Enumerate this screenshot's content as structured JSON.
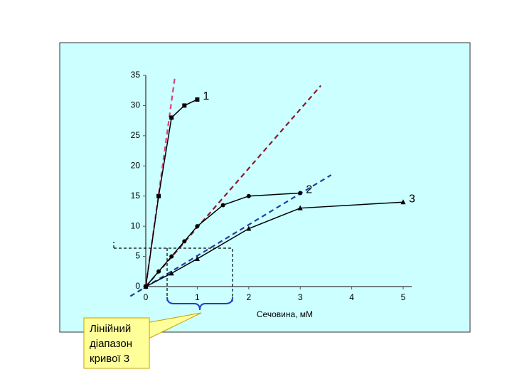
{
  "chart_data": {
    "type": "line",
    "xlabel": "Сечовина, мМ",
    "xlim": [
      0,
      5
    ],
    "xticks": [
      0,
      1,
      2,
      3,
      4,
      5
    ],
    "ylim": [
      0,
      35
    ],
    "yticks": [
      0,
      5,
      10,
      15,
      20,
      25,
      30,
      35
    ],
    "series": [
      {
        "name": "1",
        "color": "#000000",
        "marker": "square",
        "x": [
          0,
          0.25,
          0.5,
          0.75,
          1
        ],
        "values": [
          0,
          15,
          28,
          30,
          31
        ]
      },
      {
        "name": "2",
        "color": "#000000",
        "marker": "circle",
        "x": [
          0,
          0.25,
          0.5,
          0.75,
          1,
          1.5,
          2,
          3
        ],
        "values": [
          0,
          2.5,
          5,
          7.5,
          10,
          13.5,
          15,
          15.5
        ]
      },
      {
        "name": "3",
        "color": "#000000",
        "marker": "triangle",
        "x": [
          0,
          0.5,
          1,
          2,
          3,
          5
        ],
        "values": [
          0,
          2.2,
          4.6,
          9.6,
          13,
          14
        ]
      }
    ],
    "reference_lines": [
      {
        "color": "#e0407a",
        "x": [
          0,
          0.57
        ],
        "y": [
          0,
          35
        ]
      },
      {
        "color": "#8b1a2a",
        "x": [
          0,
          3.4
        ],
        "y": [
          0,
          33.3
        ]
      },
      {
        "color": "#2040a0",
        "x": [
          -0.3,
          3.6
        ],
        "y": [
          -1.6,
          18.5
        ]
      }
    ],
    "callout": [
      "Лінійний",
      "діапазон",
      "кривої 3"
    ]
  }
}
